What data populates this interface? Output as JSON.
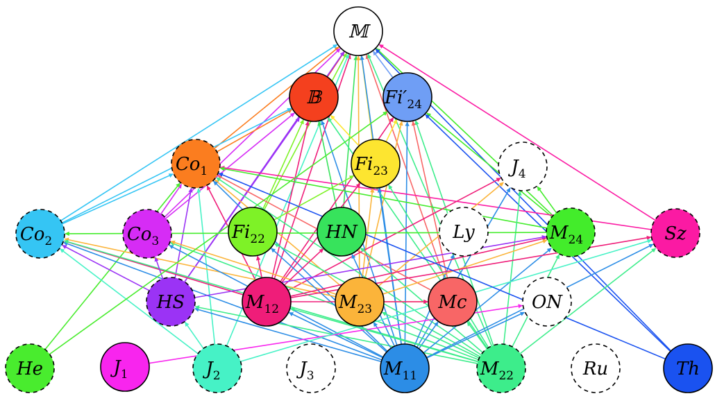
{
  "nodes": [
    {
      "id": "M",
      "label": "𝕄",
      "sub": "",
      "fill": "#ffffff",
      "dashed": false
    },
    {
      "id": "B",
      "label": "𝔹",
      "sub": "",
      "fill": "#f4401e",
      "dashed": false
    },
    {
      "id": "Fi24",
      "label": "Fi′",
      "sub": "24",
      "fill": "#6f9ef5",
      "dashed": false
    },
    {
      "id": "Co1",
      "label": "Co",
      "sub": "1",
      "fill": "#fb7d1f",
      "dashed": true
    },
    {
      "id": "Fi23",
      "label": "Fi",
      "sub": "23",
      "fill": "#fde530",
      "dashed": false
    },
    {
      "id": "J4",
      "label": "J",
      "sub": "4",
      "fill": "#ffffff",
      "dashed": true
    },
    {
      "id": "Co2",
      "label": "Co",
      "sub": "2",
      "fill": "#35c5f4",
      "dashed": true
    },
    {
      "id": "Co3",
      "label": "Co",
      "sub": "3",
      "fill": "#d62cf5",
      "dashed": true
    },
    {
      "id": "Fi22",
      "label": "Fi",
      "sub": "22",
      "fill": "#7ef227",
      "dashed": false
    },
    {
      "id": "HN",
      "label": "HN",
      "sub": "",
      "fill": "#37e35c",
      "dashed": false
    },
    {
      "id": "Ly",
      "label": "Ly",
      "sub": "",
      "fill": "#ffffff",
      "dashed": true
    },
    {
      "id": "M24",
      "label": "M",
      "sub": "24",
      "fill": "#43ec2b",
      "dashed": true
    },
    {
      "id": "Sz",
      "label": "Sz",
      "sub": "",
      "fill": "#fb1aa3",
      "dashed": true
    },
    {
      "id": "HS",
      "label": "HS",
      "sub": "",
      "fill": "#9b33f5",
      "dashed": true
    },
    {
      "id": "M12",
      "label": "M",
      "sub": "12",
      "fill": "#ef1d79",
      "dashed": false
    },
    {
      "id": "M23",
      "label": "M",
      "sub": "23",
      "fill": "#fbb43a",
      "dashed": false
    },
    {
      "id": "Mc",
      "label": "Mc",
      "sub": "",
      "fill": "#f86666",
      "dashed": false
    },
    {
      "id": "ON",
      "label": "ON",
      "sub": "",
      "fill": "#ffffff",
      "dashed": true
    },
    {
      "id": "He",
      "label": "He",
      "sub": "",
      "fill": "#49ec2e",
      "dashed": true
    },
    {
      "id": "J1",
      "label": "J",
      "sub": "1",
      "fill": "#f825ee",
      "dashed": false
    },
    {
      "id": "J2",
      "label": "J",
      "sub": "2",
      "fill": "#46f2c6",
      "dashed": true
    },
    {
      "id": "J3",
      "label": "J",
      "sub": "3",
      "fill": "#ffffff",
      "dashed": true
    },
    {
      "id": "M11",
      "label": "M",
      "sub": "11",
      "fill": "#2c8de6",
      "dashed": false
    },
    {
      "id": "M22",
      "label": "M",
      "sub": "22",
      "fill": "#3ded8b",
      "dashed": true
    },
    {
      "id": "Ru",
      "label": "Ru",
      "sub": "",
      "fill": "#ffffff",
      "dashed": true
    },
    {
      "id": "Th",
      "label": "Th",
      "sub": "",
      "fill": "#1a52f0",
      "dashed": false
    }
  ],
  "edges": [
    {
      "from": "B",
      "to": "M",
      "color": "#f4401e"
    },
    {
      "from": "Fi24",
      "to": "M",
      "color": "#6f9ef5"
    },
    {
      "from": "Co1",
      "to": "M",
      "color": "#fb7d1f"
    },
    {
      "from": "Co2",
      "to": "M",
      "color": "#35c5f4"
    },
    {
      "from": "Co3",
      "to": "M",
      "color": "#d62cf5"
    },
    {
      "from": "Fi22",
      "to": "M",
      "color": "#7ef227"
    },
    {
      "from": "HN",
      "to": "M",
      "color": "#37e35c"
    },
    {
      "from": "Fi23",
      "to": "M",
      "color": "#fde530"
    },
    {
      "from": "M24",
      "to": "M",
      "color": "#43ec2b"
    },
    {
      "from": "Sz",
      "to": "M",
      "color": "#fb1aa3"
    },
    {
      "from": "HS",
      "to": "M",
      "color": "#9b33f5"
    },
    {
      "from": "M12",
      "to": "M",
      "color": "#ef1d79"
    },
    {
      "from": "M23",
      "to": "M",
      "color": "#fbb43a"
    },
    {
      "from": "Mc",
      "to": "M",
      "color": "#f86666"
    },
    {
      "from": "M11",
      "to": "M",
      "color": "#2c8de6"
    },
    {
      "from": "M22",
      "to": "M",
      "color": "#3ded8b"
    },
    {
      "from": "J2",
      "to": "M",
      "color": "#46f2c6"
    },
    {
      "from": "Th",
      "to": "M",
      "color": "#1a52f0"
    },
    {
      "from": "Co1",
      "to": "B",
      "color": "#fb7d1f"
    },
    {
      "from": "Co2",
      "to": "B",
      "color": "#35c5f4"
    },
    {
      "from": "Co3",
      "to": "B",
      "color": "#d62cf5"
    },
    {
      "from": "Fi22",
      "to": "B",
      "color": "#7ef227"
    },
    {
      "from": "Fi23",
      "to": "B",
      "color": "#fde530"
    },
    {
      "from": "HN",
      "to": "B",
      "color": "#37e35c"
    },
    {
      "from": "HS",
      "to": "B",
      "color": "#9b33f5"
    },
    {
      "from": "M12",
      "to": "B",
      "color": "#ef1d79"
    },
    {
      "from": "M22",
      "to": "B",
      "color": "#3ded8b"
    },
    {
      "from": "M11",
      "to": "B",
      "color": "#2c8de6"
    },
    {
      "from": "Fi23",
      "to": "Fi24",
      "color": "#fde530"
    },
    {
      "from": "M24",
      "to": "Fi24",
      "color": "#43ec2b"
    },
    {
      "from": "M12",
      "to": "Fi24",
      "color": "#ef1d79"
    },
    {
      "from": "M23",
      "to": "Fi24",
      "color": "#fbb43a"
    },
    {
      "from": "M11",
      "to": "Fi24",
      "color": "#2c8de6"
    },
    {
      "from": "M22",
      "to": "Fi24",
      "color": "#3ded8b"
    },
    {
      "from": "Th",
      "to": "Fi24",
      "color": "#1a52f0"
    },
    {
      "from": "Mc",
      "to": "Fi24",
      "color": "#f86666"
    },
    {
      "from": "Co2",
      "to": "Co1",
      "color": "#35c5f4"
    },
    {
      "from": "Co3",
      "to": "Co1",
      "color": "#d62cf5"
    },
    {
      "from": "HS",
      "to": "Co1",
      "color": "#9b33f5"
    },
    {
      "from": "He",
      "to": "Co1",
      "color": "#49ec2e"
    },
    {
      "from": "J2",
      "to": "Co1",
      "color": "#46f2c6"
    },
    {
      "from": "M12",
      "to": "Co1",
      "color": "#ef1d79"
    },
    {
      "from": "M23",
      "to": "Co1",
      "color": "#fbb43a"
    },
    {
      "from": "Mc",
      "to": "Co1",
      "color": "#f86666"
    },
    {
      "from": "M22",
      "to": "Co1",
      "color": "#3ded8b"
    },
    {
      "from": "M11",
      "to": "Co1",
      "color": "#2c8de6"
    },
    {
      "from": "Sz",
      "to": "Co1",
      "color": "#fb1aa3"
    },
    {
      "from": "M24",
      "to": "Co1",
      "color": "#43ec2b"
    },
    {
      "from": "Fi22",
      "to": "Fi23",
      "color": "#7ef227"
    },
    {
      "from": "M12",
      "to": "Fi23",
      "color": "#ef1d79"
    },
    {
      "from": "M11",
      "to": "Fi23",
      "color": "#2c8de6"
    },
    {
      "from": "M22",
      "to": "Fi23",
      "color": "#3ded8b"
    },
    {
      "from": "M23",
      "to": "Fi23",
      "color": "#fbb43a"
    },
    {
      "from": "M24",
      "to": "J4",
      "color": "#43ec2b"
    },
    {
      "from": "M11",
      "to": "J4",
      "color": "#2c8de6"
    },
    {
      "from": "M12",
      "to": "J4",
      "color": "#ef1d79"
    },
    {
      "from": "M22",
      "to": "J4",
      "color": "#3ded8b"
    },
    {
      "from": "M23",
      "to": "J4",
      "color": "#fbb43a"
    },
    {
      "from": "M24",
      "to": "Co2",
      "color": "#43ec2b"
    },
    {
      "from": "M12",
      "to": "Co2",
      "color": "#ef1d79"
    },
    {
      "from": "M11",
      "to": "Co2",
      "color": "#2c8de6"
    },
    {
      "from": "HS",
      "to": "Co2",
      "color": "#9b33f5"
    },
    {
      "from": "M23",
      "to": "Co2",
      "color": "#fbb43a"
    },
    {
      "from": "M22",
      "to": "Co2",
      "color": "#3ded8b"
    },
    {
      "from": "M11",
      "to": "Co3",
      "color": "#2c8de6"
    },
    {
      "from": "M22",
      "to": "Co3",
      "color": "#3ded8b"
    },
    {
      "from": "M23",
      "to": "Co3",
      "color": "#fbb43a"
    },
    {
      "from": "HS",
      "to": "Co3",
      "color": "#9b33f5"
    },
    {
      "from": "M11",
      "to": "Fi22",
      "color": "#2c8de6"
    },
    {
      "from": "M12",
      "to": "Fi22",
      "color": "#ef1d79"
    },
    {
      "from": "M22",
      "to": "Fi22",
      "color": "#3ded8b"
    },
    {
      "from": "M11",
      "to": "HN",
      "color": "#2c8de6"
    },
    {
      "from": "M12",
      "to": "HN",
      "color": "#ef1d79"
    },
    {
      "from": "M22",
      "to": "HN",
      "color": "#3ded8b"
    },
    {
      "from": "M11",
      "to": "Ly",
      "color": "#2c8de6"
    },
    {
      "from": "M11",
      "to": "M24",
      "color": "#2c8de6"
    },
    {
      "from": "M12",
      "to": "M24",
      "color": "#ef1d79"
    },
    {
      "from": "M22",
      "to": "M24",
      "color": "#3ded8b"
    },
    {
      "from": "M23",
      "to": "M24",
      "color": "#fbb43a"
    },
    {
      "from": "HS",
      "to": "M24",
      "color": "#9b33f5"
    },
    {
      "from": "M11",
      "to": "Sz",
      "color": "#2c8de6"
    },
    {
      "from": "M12",
      "to": "Sz",
      "color": "#ef1d79"
    },
    {
      "from": "M22",
      "to": "Sz",
      "color": "#3ded8b"
    },
    {
      "from": "M11",
      "to": "HS",
      "color": "#2c8de6"
    },
    {
      "from": "M22",
      "to": "HS",
      "color": "#3ded8b"
    },
    {
      "from": "M11",
      "to": "M12",
      "color": "#2c8de6"
    },
    {
      "from": "M22",
      "to": "M23",
      "color": "#3ded8b"
    },
    {
      "from": "M11",
      "to": "M23",
      "color": "#2c8de6"
    },
    {
      "from": "M22",
      "to": "Mc",
      "color": "#3ded8b"
    },
    {
      "from": "M11",
      "to": "Mc",
      "color": "#2c8de6"
    },
    {
      "from": "M23",
      "to": "Mc",
      "color": "#fbb43a"
    },
    {
      "from": "M11",
      "to": "ON",
      "color": "#2c8de6"
    },
    {
      "from": "J1",
      "to": "ON",
      "color": "#f825ee"
    },
    {
      "from": "J2",
      "to": "HS",
      "color": "#46f2c6"
    },
    {
      "from": "J2",
      "to": "Sz",
      "color": "#46f2c6"
    },
    {
      "from": "J2",
      "to": "Co2",
      "color": "#46f2c6"
    },
    {
      "from": "He",
      "to": "Fi24",
      "color": "#49ec2e"
    },
    {
      "from": "M22",
      "to": "M12",
      "color": "#3ded8b"
    },
    {
      "from": "M12",
      "to": "Mc",
      "color": "#ef1d79"
    },
    {
      "from": "Th",
      "to": "Co1",
      "color": "#1a52f0"
    }
  ]
}
